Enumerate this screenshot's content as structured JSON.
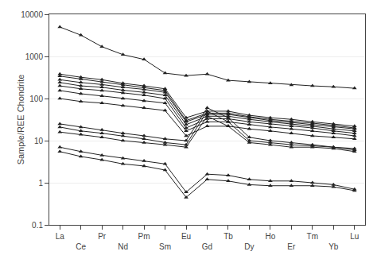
{
  "chart_data": {
    "type": "line",
    "ylabel": "Sample/REE Chondrite",
    "categories": [
      "La",
      "Ce",
      "Pr",
      "Nd",
      "Pm",
      "Sm",
      "Eu",
      "Gd",
      "Tb",
      "Dy",
      "Ho",
      "Er",
      "Tm",
      "Yb",
      "Lu"
    ],
    "series": [
      {
        "color": "#222222",
        "marker": "triangle",
        "line_style": "solid",
        "values": [
          5000,
          3200,
          1700,
          1100,
          850,
          400,
          350,
          380,
          270,
          250,
          230,
          210,
          200,
          190,
          175
        ]
      },
      {
        "color": "#222222",
        "marker": "triangle",
        "line_style": "solid",
        "values": [
          380,
          320,
          280,
          230,
          200,
          170,
          35,
          50,
          50,
          40,
          35,
          32,
          28,
          25,
          22
        ]
      },
      {
        "color": "#222222",
        "marker": "triangle",
        "line_style": "solid",
        "values": [
          340,
          290,
          250,
          210,
          185,
          155,
          30,
          45,
          45,
          37,
          32,
          29,
          26,
          23,
          20
        ]
      },
      {
        "color": "#222222",
        "marker": "triangle",
        "line_style": "solid",
        "values": [
          280,
          240,
          215,
          185,
          165,
          140,
          28,
          42,
          42,
          35,
          30,
          27,
          24,
          21,
          19
        ]
      },
      {
        "color": "#222222",
        "marker": "triangle",
        "line_style": "solid",
        "values": [
          240,
          200,
          185,
          158,
          140,
          120,
          24,
          38,
          38,
          32,
          28,
          25,
          22,
          19,
          17
        ]
      },
      {
        "color": "#222222",
        "marker": "triangle",
        "line_style": "solid",
        "values": [
          200,
          170,
          155,
          135,
          120,
          100,
          20,
          33,
          33,
          28,
          25,
          22,
          20,
          17,
          15
        ]
      },
      {
        "color": "#222222",
        "marker": "triangle",
        "line_style": "solid",
        "values": [
          155,
          130,
          115,
          100,
          88,
          78,
          17,
          28,
          28,
          24,
          21,
          19,
          17,
          15,
          13
        ]
      },
      {
        "color": "#222222",
        "marker": "triangle",
        "line_style": "solid",
        "values": [
          100,
          85,
          78,
          68,
          60,
          52,
          13,
          22,
          22,
          19,
          17,
          15,
          13,
          12,
          11
        ]
      },
      {
        "color": "#222222",
        "marker": "triangle",
        "line_style": "solid",
        "values": [
          25,
          21,
          18,
          15,
          13,
          11,
          10,
          60,
          35,
          12,
          10,
          9,
          8,
          7,
          6.5
        ]
      },
      {
        "color": "#222222",
        "marker": "triangle",
        "line_style": "solid",
        "values": [
          21,
          17,
          15,
          13,
          11,
          9,
          8,
          50,
          28,
          10,
          9,
          8,
          7.5,
          7,
          6
        ]
      },
      {
        "color": "#222222",
        "marker": "triangle",
        "line_style": "solid",
        "values": [
          16,
          14,
          12,
          10,
          9,
          8,
          7,
          38,
          22,
          9,
          8,
          7,
          7,
          6.5,
          5.5
        ]
      },
      {
        "color": "#222222",
        "marker": "triangle",
        "line_style": "solid",
        "values": [
          7,
          5.5,
          4.5,
          3.8,
          3.3,
          2.8,
          0.6,
          1.6,
          1.5,
          1.2,
          1.1,
          1.1,
          1.0,
          0.9,
          0.7
        ]
      },
      {
        "color": "#222222",
        "marker": "triangle",
        "line_style": "solid",
        "values": [
          5.5,
          4.2,
          3.5,
          2.8,
          2.5,
          2.0,
          0.45,
          1.2,
          1.1,
          0.9,
          0.85,
          0.85,
          0.85,
          0.8,
          0.65
        ]
      }
    ],
    "log": "y",
    "ylim": [
      0.1,
      10000
    ],
    "yticks": [
      0.1,
      1,
      10,
      100,
      1000,
      10000
    ],
    "grid": true
  }
}
